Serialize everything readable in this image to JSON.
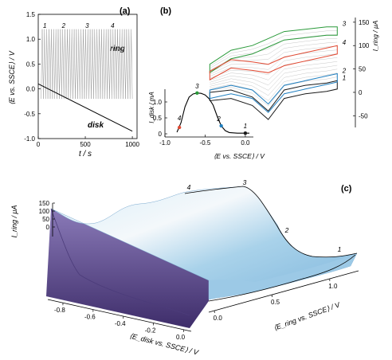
{
  "panel_a": {
    "label": "(a)",
    "ylabel": "⟨E vs. SSCE⟩ / V",
    "xlabel": "t / s",
    "ring_label": "ring",
    "disk_label": "disk",
    "cycle_labels": [
      "1",
      "2",
      "3",
      "4"
    ]
  },
  "panel_b": {
    "label": "(b)",
    "inset_ylabel": "I_disk / mA",
    "inset_xlabel": "⟨E vs. SSCE⟩ / V",
    "ring_axis_label": "I_ring / μA",
    "inset_point_labels": [
      "1",
      "2",
      "3",
      "4"
    ],
    "cv_labels": [
      "1",
      "2",
      "3",
      "4"
    ]
  },
  "panel_c": {
    "label": "(c)",
    "zlabel": "I_ring / μA",
    "xlabel": "⟨E_ring vs. SSCE⟩ / V",
    "ylabel": "⟨E_disk vs. SSCE⟩ / V",
    "peak_labels": [
      "1",
      "2",
      "3",
      "4"
    ]
  },
  "colors": {
    "cv_1": "#1a1a1a",
    "cv_2": "#1f7fc0",
    "cv_3": "#2a9a3a",
    "cv_4": "#e24a33",
    "surface_top": "#bfe0f2",
    "surface_side": "#5e4a8c"
  },
  "chart_data": [
    {
      "type": "line",
      "panel": "a",
      "xlim": [
        0,
        1050
      ],
      "ylim": [
        -1.0,
        1.5
      ],
      "x_ticks": [
        0,
        500,
        1000
      ],
      "y_ticks": [
        -1.0,
        -0.5,
        0,
        0.5,
        1.0,
        1.5
      ],
      "series": [
        {
          "name": "ring",
          "waveform": "triangular",
          "high": 1.2,
          "low": -0.2,
          "x_start": 30,
          "x_end": 1000
        },
        {
          "name": "disk",
          "x": [
            0,
            1000
          ],
          "y": [
            0.1,
            -0.85
          ]
        }
      ]
    },
    {
      "type": "line",
      "panel": "b-inset",
      "xlim": [
        -1.0,
        0.1
      ],
      "ylim": [
        -0.1,
        1.4
      ],
      "x_ticks": [
        -1.0,
        -0.5,
        0.0
      ],
      "y_ticks": [
        0,
        0.5,
        1.0
      ],
      "series": [
        {
          "x": [
            -0.85,
            -0.8,
            -0.75,
            -0.7,
            -0.65,
            -0.6,
            -0.55,
            -0.5,
            -0.45,
            -0.4,
            -0.35,
            -0.3,
            -0.25,
            -0.2,
            -0.1,
            0.0,
            0.05
          ],
          "y": [
            0.05,
            0.35,
            0.85,
            1.15,
            1.25,
            1.28,
            1.27,
            1.22,
            1.1,
            0.9,
            0.55,
            0.25,
            0.1,
            0.04,
            0.02,
            0.02,
            0.02
          ]
        }
      ],
      "points": [
        {
          "label": "1",
          "x": 0.0,
          "y": 0.02,
          "color": "#1a1a1a"
        },
        {
          "label": "2",
          "x": -0.3,
          "y": 0.25,
          "color": "#1f7fc0"
        },
        {
          "label": "3",
          "x": -0.6,
          "y": 1.28,
          "color": "#2a9a3a"
        },
        {
          "label": "4",
          "x": -0.82,
          "y": 0.2,
          "color": "#e24a33"
        }
      ]
    },
    {
      "type": "line",
      "panel": "b-cv",
      "ylim": [
        -75,
        160
      ],
      "y_ticks": [
        -50,
        0,
        50,
        100,
        150
      ],
      "series": [
        {
          "name": "1",
          "color": "#1a1a1a",
          "x": [
            0.0,
            0.2,
            0.4,
            0.55,
            0.7,
            0.9,
            1.1,
            1.2
          ],
          "y": [
            0,
            5,
            -10,
            -40,
            5,
            15,
            20,
            25
          ]
        },
        {
          "name": "2",
          "color": "#1f7fc0",
          "x": [
            0.0,
            0.2,
            0.4,
            0.55,
            0.7,
            0.9,
            1.1,
            1.2
          ],
          "y": [
            5,
            15,
            5,
            -25,
            15,
            25,
            35,
            40
          ]
        },
        {
          "name": "3",
          "color": "#2a9a3a",
          "x": [
            0.0,
            0.2,
            0.4,
            0.55,
            0.7,
            0.9,
            1.1,
            1.2
          ],
          "y": [
            60,
            90,
            100,
            115,
            130,
            135,
            140,
            140
          ]
        },
        {
          "name": "4",
          "color": "#e24a33",
          "x": [
            0.0,
            0.2,
            0.4,
            0.55,
            0.7,
            0.9,
            1.1,
            1.2
          ],
          "y": [
            45,
            70,
            65,
            60,
            75,
            85,
            95,
            100
          ]
        }
      ]
    },
    {
      "type": "surface",
      "panel": "c",
      "x_ticks": [
        0.0,
        0.5,
        1.0
      ],
      "y_ticks": [
        -0.8,
        -0.6,
        -0.4,
        -0.2,
        0.0
      ],
      "z_ticks": [
        0,
        50,
        100,
        150
      ]
    }
  ]
}
